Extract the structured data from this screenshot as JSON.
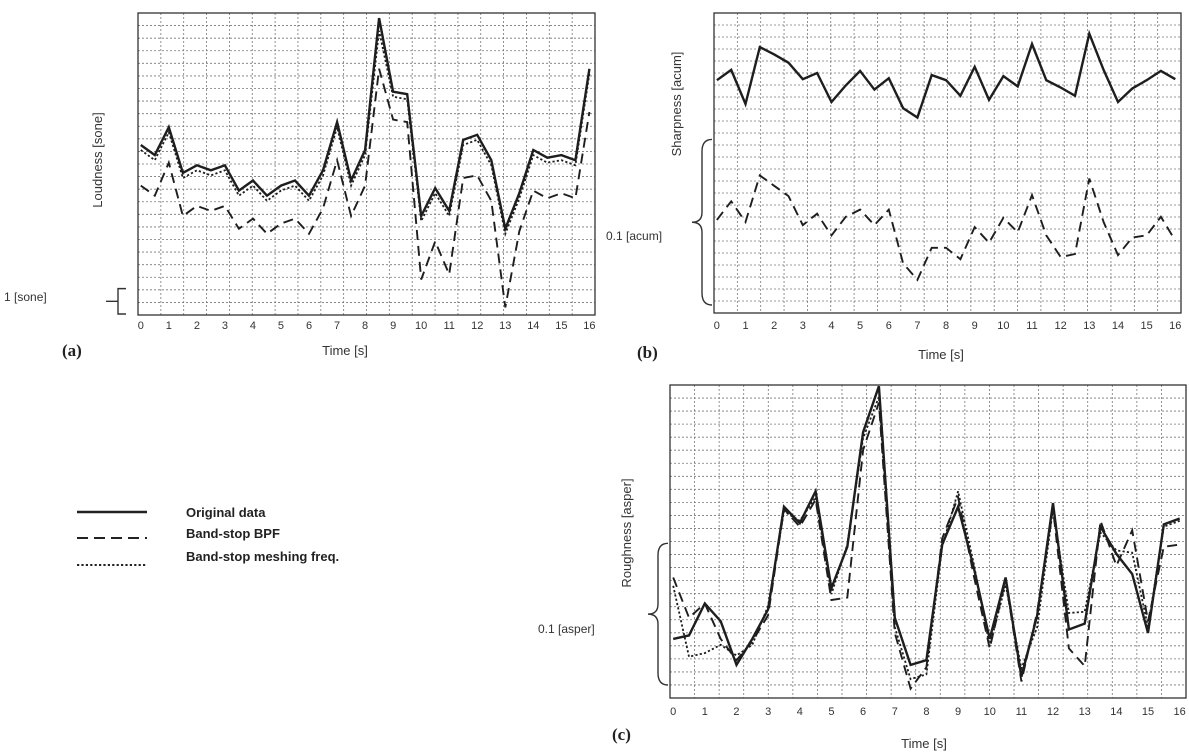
{
  "legend": {
    "items": [
      {
        "label": "Original data",
        "dash": "solid",
        "width": 2.4
      },
      {
        "label": "Band-stop BPF",
        "dash": "dashed",
        "width": 1.9
      },
      {
        "label": "Band-stop meshing freq.",
        "dash": "dotted",
        "width": 1.9
      }
    ]
  },
  "chart_data": [
    {
      "type": "line",
      "panel_label": "(a)",
      "xlabel": "Time [s]",
      "ylabel": "Loudness [sone]",
      "scale_bar": {
        "label": "1 [sone]",
        "value": 1
      },
      "xlim": [
        -0.1,
        16.2
      ],
      "ylim": [
        -0.3,
        11.6
      ],
      "x_tick_labels": [
        "0",
        "1",
        "2",
        "3",
        "4",
        "5",
        "6",
        "7",
        "8",
        "9",
        "10",
        "11",
        "12",
        "13",
        "14",
        "15",
        "16"
      ],
      "grid": true,
      "series": [
        {
          "style": "Original data",
          "x": [
            0,
            0.5,
            1,
            1.5,
            2,
            2.5,
            3,
            3.5,
            4,
            4.5,
            5,
            5.5,
            6,
            6.5,
            7,
            7.5,
            8,
            8.5,
            9,
            9.5,
            10,
            10.5,
            11,
            11.5,
            12,
            12.5,
            13,
            13.5,
            14,
            14.5,
            15,
            15.5,
            16
          ],
          "y": [
            6.4,
            6.0,
            7.1,
            5.3,
            5.6,
            5.4,
            5.6,
            4.6,
            5.0,
            4.4,
            4.8,
            5.0,
            4.4,
            5.4,
            7.3,
            5.0,
            6.2,
            11.4,
            8.5,
            8.4,
            3.6,
            4.7,
            3.8,
            6.6,
            6.8,
            5.8,
            3.1,
            4.5,
            6.2,
            5.9,
            6.0,
            5.8,
            9.4
          ]
        },
        {
          "style": "Band-stop BPF",
          "x": [
            0,
            0.5,
            1,
            1.5,
            2,
            2.5,
            3,
            3.5,
            4,
            4.5,
            5,
            5.5,
            6,
            6.5,
            7,
            7.5,
            8,
            8.5,
            9,
            9.5,
            10,
            10.5,
            11,
            11.5,
            12,
            12.5,
            13,
            13.5,
            14,
            14.5,
            15,
            15.5,
            16
          ],
          "y": [
            4.8,
            4.4,
            5.7,
            3.6,
            4.0,
            3.8,
            4.0,
            3.1,
            3.5,
            2.9,
            3.3,
            3.5,
            2.9,
            3.9,
            5.8,
            3.6,
            4.8,
            9.4,
            7.4,
            7.3,
            1.1,
            2.6,
            1.3,
            5.1,
            5.2,
            4.2,
            0.0,
            3.0,
            4.6,
            4.3,
            4.5,
            4.3,
            7.7
          ]
        },
        {
          "style": "Band-stop meshing freq.",
          "x": [
            0,
            0.5,
            1,
            1.5,
            2,
            2.5,
            3,
            3.5,
            4,
            4.5,
            5,
            5.5,
            6,
            6.5,
            7,
            7.5,
            8,
            8.5,
            9,
            9.5,
            10,
            10.5,
            11,
            11.5,
            12,
            12.5,
            13,
            13.5,
            14,
            14.5,
            15,
            15.5,
            16
          ],
          "y": [
            6.2,
            5.8,
            6.9,
            5.1,
            5.4,
            5.2,
            5.4,
            4.4,
            4.8,
            4.2,
            4.6,
            4.8,
            4.2,
            5.2,
            7.1,
            4.8,
            6.0,
            10.9,
            8.3,
            8.2,
            3.4,
            4.5,
            3.6,
            6.4,
            6.6,
            5.6,
            2.9,
            4.3,
            6.0,
            5.7,
            5.8,
            5.6,
            9.2
          ]
        }
      ]
    },
    {
      "type": "line",
      "panel_label": "(b)",
      "xlabel": "Time [s]",
      "ylabel": "Sharpness [acum]",
      "scale_bar": {
        "label": "0.1 [acum]",
        "value": 0.16
      },
      "xlim": [
        -0.1,
        16.2
      ],
      "ylim": [
        -0.02,
        0.27
      ],
      "x_tick_labels": [
        "0",
        "1",
        "2",
        "3",
        "4",
        "5",
        "6",
        "7",
        "8",
        "9",
        "10",
        "11",
        "12",
        "13",
        "14",
        "15",
        "16"
      ],
      "grid": true,
      "series": [
        {
          "style": "Original data",
          "x": [
            0,
            0.5,
            1,
            1.5,
            2,
            2.5,
            3,
            3.5,
            4,
            4.5,
            5,
            5.5,
            6,
            6.5,
            7,
            7.5,
            8,
            8.5,
            9,
            9.5,
            10,
            10.5,
            11,
            11.5,
            12,
            12.5,
            13,
            13.5,
            14,
            14.5,
            15,
            15.5,
            16
          ],
          "y": [
            0.205,
            0.215,
            0.182,
            0.237,
            0.23,
            0.222,
            0.206,
            0.212,
            0.184,
            0.2,
            0.214,
            0.196,
            0.207,
            0.178,
            0.169,
            0.21,
            0.205,
            0.19,
            0.218,
            0.186,
            0.209,
            0.199,
            0.24,
            0.205,
            0.198,
            0.19,
            0.25,
            0.215,
            0.184,
            0.197,
            0.205,
            0.214,
            0.206
          ]
        },
        {
          "style": "Band-stop BPF",
          "x": [
            0,
            0.5,
            1,
            1.5,
            2,
            2.5,
            3,
            3.5,
            4,
            4.5,
            5,
            5.5,
            6,
            6.5,
            7,
            7.5,
            8,
            8.5,
            9,
            9.5,
            10,
            10.5,
            11,
            11.5,
            12,
            12.5,
            13,
            13.5,
            14,
            14.5,
            15,
            15.5,
            16
          ],
          "y": [
            0.07,
            0.088,
            0.068,
            0.113,
            0.103,
            0.093,
            0.065,
            0.076,
            0.055,
            0.073,
            0.08,
            0.065,
            0.08,
            0.028,
            0.012,
            0.043,
            0.043,
            0.032,
            0.063,
            0.048,
            0.072,
            0.058,
            0.094,
            0.055,
            0.034,
            0.037,
            0.11,
            0.068,
            0.036,
            0.053,
            0.055,
            0.073,
            0.05
          ]
        }
      ]
    },
    {
      "type": "line",
      "panel_label": "(c)",
      "xlabel": "Time [s]",
      "ylabel": "Roughness [asper]",
      "scale_bar": {
        "label": "0.1 [asper]",
        "value": 0.12
      },
      "xlim": [
        -0.1,
        16.2
      ],
      "ylim": [
        -0.01,
        0.255
      ],
      "x_tick_labels": [
        "0",
        "1",
        "2",
        "3",
        "4",
        "5",
        "6",
        "7",
        "8",
        "9",
        "10",
        "11",
        "12",
        "13",
        "14",
        "15",
        "16"
      ],
      "grid": true,
      "series": [
        {
          "style": "Original data",
          "x": [
            0,
            0.5,
            1,
            1.5,
            2,
            2.5,
            3,
            3.5,
            4,
            4.5,
            5,
            5.5,
            6,
            6.5,
            7,
            7.5,
            8,
            8.5,
            9,
            9.5,
            10,
            10.5,
            11,
            11.5,
            12,
            12.5,
            13,
            13.5,
            14,
            14.5,
            15,
            15.5,
            16
          ],
          "y": [
            0.04,
            0.043,
            0.07,
            0.055,
            0.018,
            0.04,
            0.065,
            0.152,
            0.138,
            0.165,
            0.083,
            0.118,
            0.215,
            0.254,
            0.058,
            0.018,
            0.022,
            0.12,
            0.152,
            0.1,
            0.04,
            0.092,
            0.008,
            0.06,
            0.155,
            0.048,
            0.053,
            0.135,
            0.112,
            0.095,
            0.045,
            0.137,
            0.142
          ]
        },
        {
          "style": "Band-stop BPF",
          "x": [
            0,
            0.5,
            1,
            1.5,
            2,
            2.5,
            3,
            3.5,
            4,
            4.5,
            5,
            5.5,
            6,
            6.5,
            7,
            7.5,
            8,
            8.5,
            9,
            9.5,
            10,
            10.5,
            11,
            11.5,
            12,
            12.5,
            13,
            13.5,
            14,
            14.5,
            15,
            15.5,
            16
          ],
          "y": [
            0.092,
            0.058,
            0.07,
            0.04,
            0.022,
            0.038,
            0.06,
            0.15,
            0.135,
            0.158,
            0.073,
            0.075,
            0.2,
            0.24,
            0.045,
            -0.002,
            0.016,
            0.125,
            0.16,
            0.093,
            0.032,
            0.09,
            0.004,
            0.063,
            0.15,
            0.032,
            0.017,
            0.14,
            0.102,
            0.132,
            0.055,
            0.118,
            0.12
          ]
        },
        {
          "style": "Band-stop meshing freq.",
          "x": [
            0,
            0.5,
            1,
            1.5,
            2,
            2.5,
            3,
            3.5,
            4,
            4.5,
            5,
            5.5,
            6,
            6.5,
            7,
            7.5,
            8,
            8.5,
            9,
            9.5,
            10,
            10.5,
            11,
            11.5,
            12,
            12.5,
            13,
            13.5,
            14,
            14.5,
            15,
            15.5,
            16
          ],
          "y": [
            0.085,
            0.025,
            0.028,
            0.035,
            0.026,
            0.035,
            0.068,
            0.148,
            0.14,
            0.16,
            0.078,
            0.12,
            0.21,
            0.245,
            0.05,
            0.006,
            0.01,
            0.118,
            0.165,
            0.103,
            0.034,
            0.086,
            0.015,
            0.05,
            0.15,
            0.062,
            0.063,
            0.13,
            0.115,
            0.113,
            0.05,
            0.135,
            0.14
          ]
        }
      ]
    }
  ]
}
